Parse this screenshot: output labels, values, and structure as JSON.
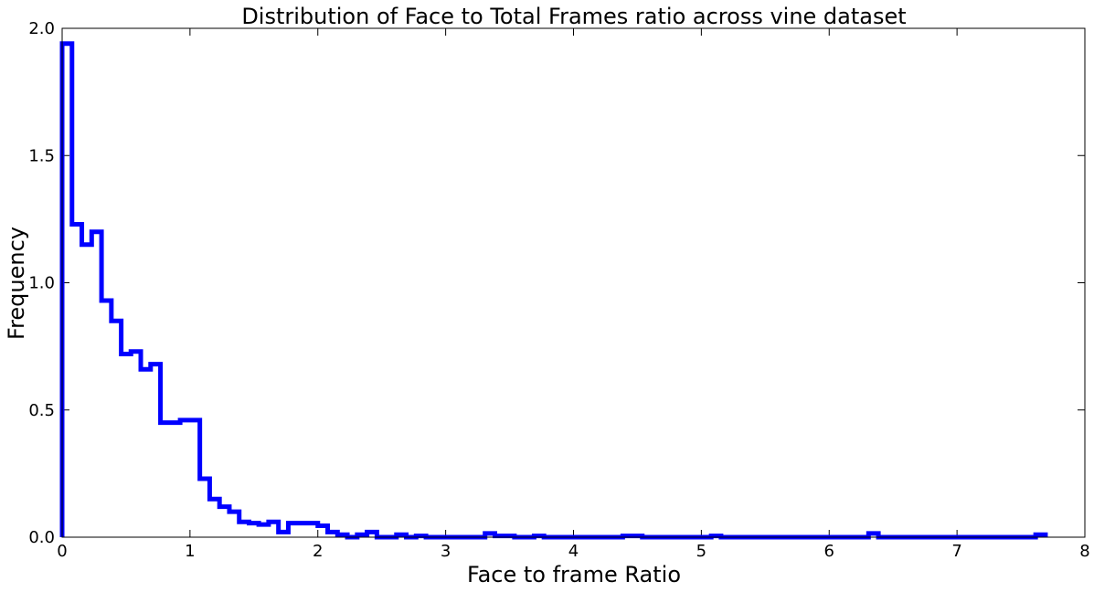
{
  "chart_data": {
    "type": "step",
    "title": "Distribution of Face to Total Frames ratio across  vine dataset",
    "xlabel": "Face to frame Ratio",
    "ylabel": "Frequency",
    "xlim": [
      0,
      8
    ],
    "ylim": [
      0,
      2.0
    ],
    "x_ticks": [
      "0",
      "1",
      "2",
      "3",
      "4",
      "5",
      "6",
      "7",
      "8"
    ],
    "y_ticks": [
      "0.0",
      "0.5",
      "1.0",
      "1.5",
      "2.0"
    ],
    "grid": false,
    "legend": "none",
    "series": [
      {
        "color": "#0000ff",
        "bin_edges": [
          0,
          0.077,
          0.154,
          0.231,
          0.308,
          0.385,
          0.462,
          0.538,
          0.615,
          0.692,
          0.769,
          0.846,
          0.923,
          1.0,
          1.077,
          1.154,
          1.231,
          1.308,
          1.385,
          1.462,
          1.538,
          1.615,
          1.692,
          1.769,
          1.846,
          1.923,
          2.0,
          2.077,
          2.154,
          2.231,
          2.308,
          2.385,
          2.462,
          2.538,
          2.615,
          2.692,
          2.769,
          2.846,
          3.231,
          3.308,
          3.385,
          3.538,
          3.692,
          3.769,
          4.385,
          4.538,
          5.077,
          5.154,
          6.308,
          6.385,
          7.615,
          7.692
        ],
        "values": [
          1.94,
          1.23,
          1.15,
          1.2,
          0.93,
          0.85,
          0.72,
          0.73,
          0.66,
          0.68,
          0.45,
          0.45,
          0.46,
          0.46,
          0.23,
          0.15,
          0.12,
          0.1,
          0.06,
          0.055,
          0.05,
          0.06,
          0.02,
          0.055,
          0.055,
          0.055,
          0.045,
          0.02,
          0.01,
          0.0,
          0.01,
          0.02,
          0.0,
          0.0,
          0.01,
          0.0,
          0.005,
          0.0,
          0.0,
          0.015,
          0.005,
          0.0,
          0.005,
          0.0,
          0.005,
          0.0,
          0.005,
          0.0,
          0.015,
          0.0,
          0.01
        ]
      }
    ]
  }
}
